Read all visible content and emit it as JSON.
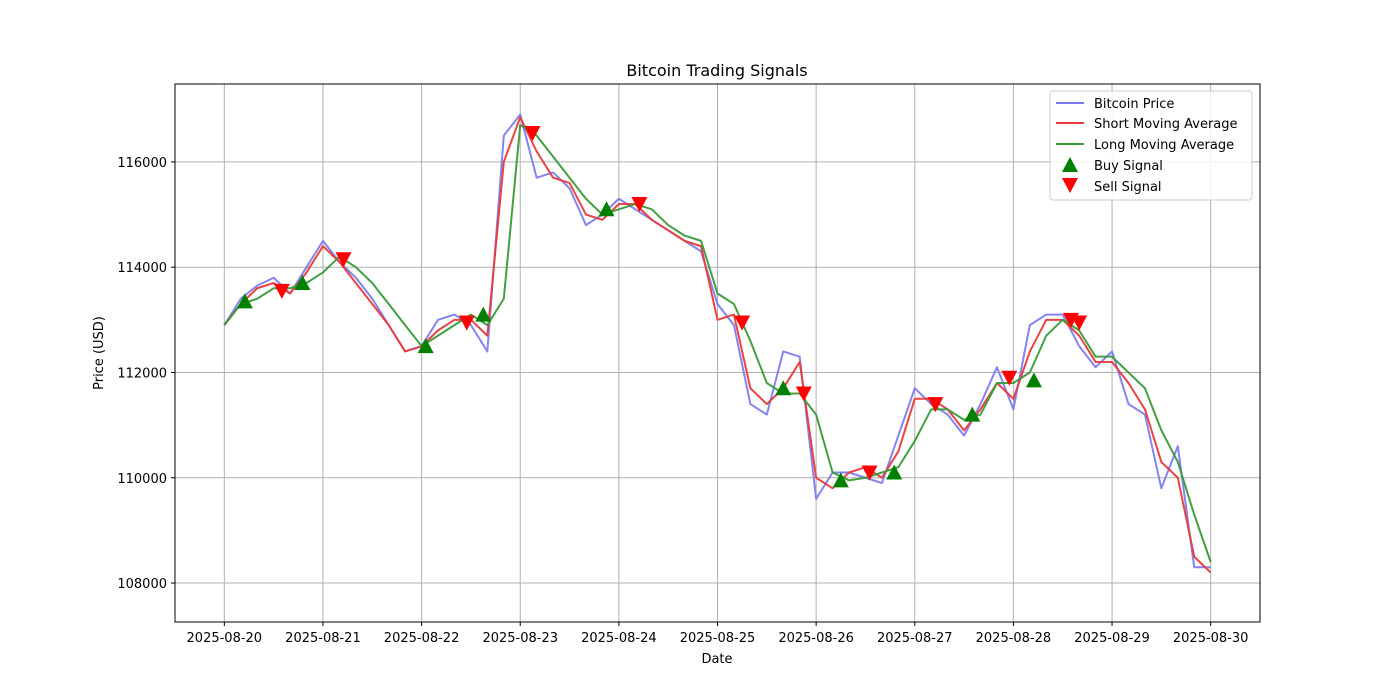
{
  "chart_data": {
    "type": "line",
    "title": "Bitcoin Trading Signals",
    "xlabel": "Date",
    "ylabel": "Price (USD)",
    "x_start": "2025-08-20",
    "interval_hours": 4,
    "xlim_hours": [
      -12,
      252
    ],
    "ylim": [
      107260,
      117480
    ],
    "x_ticks": [
      "2025-08-20",
      "2025-08-21",
      "2025-08-22",
      "2025-08-23",
      "2025-08-24",
      "2025-08-25",
      "2025-08-26",
      "2025-08-27",
      "2025-08-28",
      "2025-08-29",
      "2025-08-30"
    ],
    "y_ticks": [
      108000,
      110000,
      112000,
      114000,
      116000
    ],
    "grid": true,
    "legend_position": "top-right",
    "series": [
      {
        "name": "Bitcoin Price",
        "color": "#7777f0",
        "values": [
          112900,
          113400,
          113650,
          113800,
          113500,
          114000,
          114500,
          114100,
          113800,
          113400,
          112900,
          112400,
          112500,
          113000,
          113100,
          112900,
          112400,
          116500,
          116900,
          115700,
          115800,
          115500,
          114800,
          115000,
          115300,
          115100,
          114900,
          114700,
          114500,
          114300,
          113300,
          112900,
          111400,
          111200,
          112400,
          112300,
          109600,
          110100,
          110100,
          110000,
          109900,
          110800,
          111700,
          111400,
          111200,
          110800,
          111400,
          112100,
          111300,
          112900,
          113100,
          113100,
          112500,
          112100,
          112400,
          111400,
          111200,
          109800,
          110600,
          108300,
          108300
        ]
      },
      {
        "name": "Short Moving Average",
        "color": "#e83a3a",
        "values": [
          112900,
          113300,
          113600,
          113700,
          113500,
          113900,
          114400,
          114100,
          113700,
          113300,
          112900,
          112400,
          112500,
          112800,
          113000,
          113000,
          112700,
          116000,
          116850,
          116200,
          115700,
          115600,
          115000,
          114900,
          115200,
          115200,
          114900,
          114700,
          114500,
          114400,
          113000,
          113100,
          111700,
          111400,
          111700,
          112200,
          110000,
          109800,
          110100,
          110200,
          110000,
          110500,
          111500,
          111500,
          111300,
          110900,
          111300,
          111800,
          111500,
          112400,
          113000,
          113000,
          112700,
          112200,
          112200,
          111800,
          111300,
          110300,
          110000,
          108500,
          108200
        ]
      },
      {
        "name": "Long Moving Average",
        "color": "#3a9a3a",
        "values": [
          112900,
          113300,
          113400,
          113600,
          113600,
          113700,
          113900,
          114200,
          114000,
          113700,
          113300,
          112900,
          112500,
          112700,
          112900,
          113100,
          112900,
          113400,
          116700,
          116500,
          116100,
          115700,
          115300,
          115000,
          115100,
          115200,
          115100,
          114800,
          114600,
          114500,
          113500,
          113300,
          112600,
          111800,
          111600,
          111600,
          111200,
          110100,
          109950,
          110000,
          110100,
          110200,
          110700,
          111300,
          111300,
          111100,
          111200,
          111800,
          111800,
          112000,
          112700,
          113000,
          112800,
          112300,
          112300,
          112000,
          111700,
          110900,
          110300,
          109300,
          108400
        ]
      }
    ],
    "buy_signals": {
      "name": "Buy Signal",
      "color": "#008000",
      "hours": [
        5,
        19,
        49,
        63,
        93,
        136,
        150,
        163,
        182,
        197
      ],
      "prices": [
        113350,
        113700,
        112500,
        113100,
        115100,
        111700,
        109950,
        110100,
        111200,
        111850
      ]
    },
    "sell_signals": {
      "name": "Sell Signal",
      "color": "#ff0000",
      "hours": [
        14,
        29,
        59,
        75,
        101,
        126,
        141,
        157,
        173,
        191,
        206,
        208
      ],
      "prices": [
        113550,
        114150,
        112950,
        116550,
        115200,
        112950,
        111600,
        110100,
        111400,
        111900,
        113000,
        112950
      ]
    }
  }
}
